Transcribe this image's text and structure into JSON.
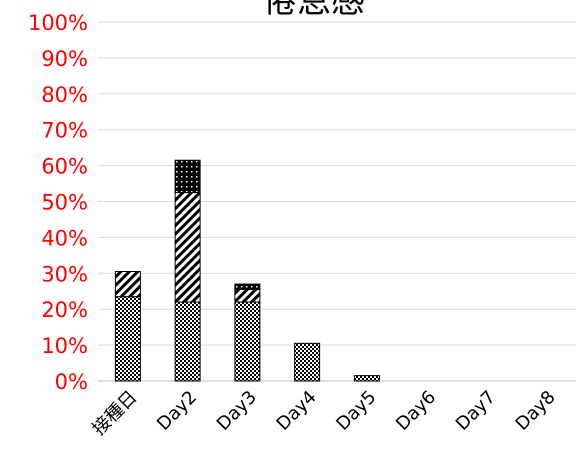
{
  "chart_data": {
    "type": "bar",
    "stacked": true,
    "title": "倦怠感",
    "xlabel": "",
    "ylabel": "",
    "ylim": [
      0,
      100
    ],
    "y_ticks": [
      "0%",
      "10%",
      "20%",
      "30%",
      "40%",
      "50%",
      "60%",
      "70%",
      "80%",
      "90%",
      "100%"
    ],
    "categories": [
      "接種日",
      "Day2",
      "Day3",
      "Day4",
      "Day5",
      "Day6",
      "Day7",
      "Day8"
    ],
    "series": [
      {
        "values": [
          23.5,
          22,
          22,
          10.5,
          1.5,
          0,
          0,
          0
        ],
        "pattern": "pat-checker"
      },
      {
        "values": [
          7,
          30.5,
          3.5,
          0,
          0,
          0,
          0,
          0
        ],
        "pattern": "pat-diag"
      },
      {
        "values": [
          0,
          9,
          1.5,
          0,
          0,
          0,
          0,
          0
        ],
        "pattern": "pat-dots"
      }
    ],
    "grid": true,
    "legend": "none",
    "colors": {
      "tick_label": "#ff0000",
      "grid": "#d9d9d9",
      "bar_outline": "#000000"
    }
  }
}
